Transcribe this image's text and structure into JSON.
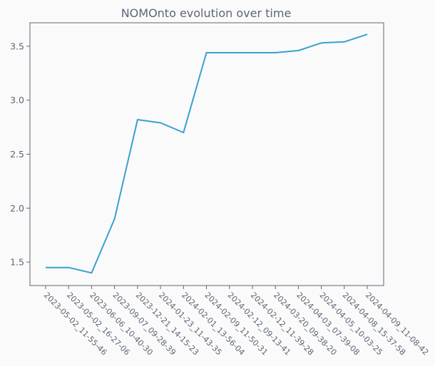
{
  "chart_data": {
    "type": "line",
    "title": "NOMOnto evolution over time",
    "xlabel": "",
    "ylabel": "",
    "categories": [
      "2023-05-02_11-55-46",
      "2023-05-02_16-27-06",
      "2023-06-06_10-40-30",
      "2023-09-07_09-28-39",
      "2023-12-21_14-15-23",
      "2024-01-23_11-43-35",
      "2024-02-01_13-56-04",
      "2024-02-09_11-50-31",
      "2024-02-12_09-13-41",
      "2024-02-12_11-39-28",
      "2024-03-20_09-38-20",
      "2024-04-03_07-39-08",
      "2024-04-05_10-03-25",
      "2024-04-08_15-37-58",
      "2024-04-09_11-08-42"
    ],
    "series": [
      {
        "values": [
          1.45,
          1.45,
          1.4,
          1.9,
          2.82,
          2.79,
          2.7,
          3.44,
          3.44,
          3.44,
          3.44,
          3.46,
          3.53,
          3.54,
          3.61
        ]
      }
    ],
    "yticks": [
      "1.5",
      "2.0",
      "2.5",
      "3.0",
      "3.5"
    ],
    "ylim": [
      1.283,
      3.717
    ],
    "grid": false,
    "line_color": "#3aa0d0",
    "axis_color": "#5d6675",
    "background": "#fafafa"
  }
}
